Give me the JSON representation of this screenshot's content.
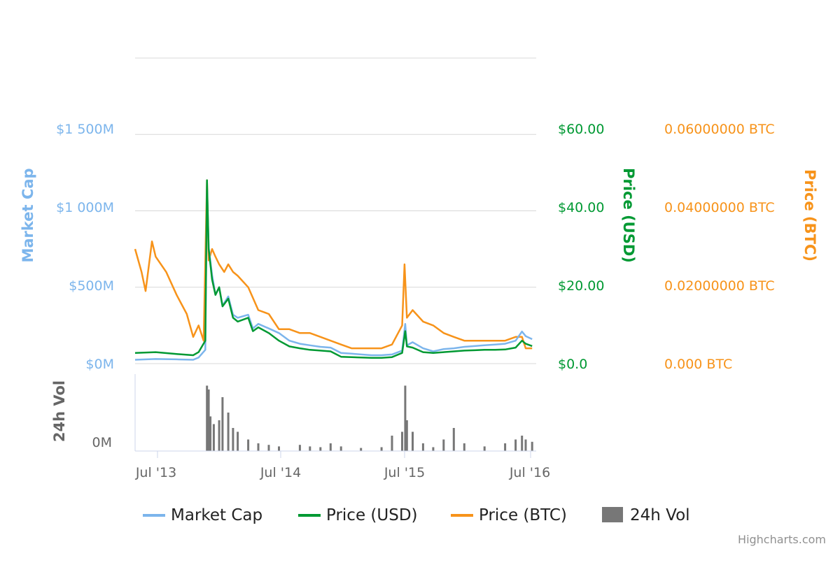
{
  "colors": {
    "market_cap": "#7cb5ec",
    "price_usd": "#009933",
    "price_btc": "#f7931a",
    "volume": "#777777",
    "grid": "#d8d8d8",
    "axis_text": "#666666"
  },
  "axes": {
    "market_cap": {
      "title": "Market Cap",
      "ticks": [
        "$0M",
        "$500M",
        "$1 000M",
        "$1 500M"
      ]
    },
    "price_usd": {
      "title": "Price (USD)",
      "ticks": [
        "$0.0",
        "$20.00",
        "$40.00",
        "$60.00"
      ]
    },
    "price_btc": {
      "title": "Price (BTC)",
      "ticks": [
        "0.000 BTC",
        "0.02000000 BTC",
        "0.04000000 BTC",
        "0.06000000 BTC"
      ]
    },
    "volume": {
      "title": "24h Vol",
      "ticks": [
        "0M"
      ]
    },
    "x_ticks": [
      "Jul '13",
      "Jul '14",
      "Jul '15",
      "Jul '16"
    ]
  },
  "legend": [
    "Market Cap",
    "Price (USD)",
    "Price (BTC)",
    "24h Vol"
  ],
  "credit": "Highcharts.com",
  "chart_data": {
    "type": "line",
    "x_range": [
      "2013-05",
      "2016-08"
    ],
    "y_ranges": {
      "market_cap": [
        0,
        2000
      ],
      "price_usd": [
        0,
        80
      ],
      "price_btc": [
        0,
        0.08
      ]
    },
    "grid": true,
    "legend_position": "bottom",
    "series": [
      {
        "name": "Market Cap",
        "axis": "market_cap",
        "unit": "$M",
        "points": [
          [
            "2013-05-01",
            25
          ],
          [
            "2013-07-01",
            30
          ],
          [
            "2013-09-01",
            28
          ],
          [
            "2013-10-20",
            25
          ],
          [
            "2013-11-05",
            40
          ],
          [
            "2013-11-25",
            90
          ],
          [
            "2013-11-30",
            1160
          ],
          [
            "2013-12-05",
            760
          ],
          [
            "2013-12-15",
            580
          ],
          [
            "2013-12-25",
            450
          ],
          [
            "2014-01-05",
            500
          ],
          [
            "2014-01-15",
            380
          ],
          [
            "2014-02-01",
            440
          ],
          [
            "2014-02-15",
            320
          ],
          [
            "2014-03-01",
            300
          ],
          [
            "2014-04-01",
            320
          ],
          [
            "2014-04-15",
            230
          ],
          [
            "2014-05-01",
            260
          ],
          [
            "2014-06-01",
            230
          ],
          [
            "2014-07-01",
            200
          ],
          [
            "2014-08-01",
            150
          ],
          [
            "2014-09-01",
            130
          ],
          [
            "2014-10-01",
            120
          ],
          [
            "2014-11-01",
            110
          ],
          [
            "2014-12-01",
            105
          ],
          [
            "2015-01-01",
            70
          ],
          [
            "2015-02-01",
            65
          ],
          [
            "2015-03-01",
            60
          ],
          [
            "2015-04-01",
            55
          ],
          [
            "2015-05-01",
            55
          ],
          [
            "2015-06-01",
            60
          ],
          [
            "2015-07-01",
            85
          ],
          [
            "2015-07-10",
            260
          ],
          [
            "2015-07-15",
            120
          ],
          [
            "2015-08-01",
            140
          ],
          [
            "2015-09-01",
            100
          ],
          [
            "2015-10-01",
            80
          ],
          [
            "2015-11-01",
            95
          ],
          [
            "2015-12-01",
            100
          ],
          [
            "2016-01-01",
            110
          ],
          [
            "2016-02-01",
            115
          ],
          [
            "2016-03-01",
            120
          ],
          [
            "2016-04-01",
            125
          ],
          [
            "2016-05-01",
            130
          ],
          [
            "2016-06-01",
            150
          ],
          [
            "2016-06-20",
            210
          ],
          [
            "2016-07-01",
            180
          ],
          [
            "2016-07-20",
            160
          ]
        ]
      },
      {
        "name": "Price (USD)",
        "axis": "price_usd",
        "unit": "$",
        "points": [
          [
            "2013-05-01",
            2.8
          ],
          [
            "2013-07-01",
            3.0
          ],
          [
            "2013-09-01",
            2.5
          ],
          [
            "2013-10-20",
            2.2
          ],
          [
            "2013-11-05",
            3.0
          ],
          [
            "2013-11-25",
            6.0
          ],
          [
            "2013-11-30",
            48.0
          ],
          [
            "2013-12-05",
            30.0
          ],
          [
            "2013-12-15",
            22.0
          ],
          [
            "2013-12-25",
            18.0
          ],
          [
            "2014-01-05",
            20.0
          ],
          [
            "2014-01-15",
            15.0
          ],
          [
            "2014-02-01",
            17.0
          ],
          [
            "2014-02-15",
            12.0
          ],
          [
            "2014-03-01",
            11.0
          ],
          [
            "2014-04-01",
            12.0
          ],
          [
            "2014-04-15",
            8.5
          ],
          [
            "2014-05-01",
            9.5
          ],
          [
            "2014-06-01",
            8.0
          ],
          [
            "2014-07-01",
            6.0
          ],
          [
            "2014-08-01",
            4.5
          ],
          [
            "2014-09-01",
            4.0
          ],
          [
            "2014-10-01",
            3.6
          ],
          [
            "2014-11-01",
            3.4
          ],
          [
            "2014-12-01",
            3.2
          ],
          [
            "2015-01-01",
            1.8
          ],
          [
            "2015-02-01",
            1.7
          ],
          [
            "2015-03-01",
            1.6
          ],
          [
            "2015-04-01",
            1.5
          ],
          [
            "2015-05-01",
            1.5
          ],
          [
            "2015-06-01",
            1.7
          ],
          [
            "2015-07-01",
            2.8
          ],
          [
            "2015-07-10",
            8.5
          ],
          [
            "2015-07-15",
            4.5
          ],
          [
            "2015-08-01",
            4.2
          ],
          [
            "2015-09-01",
            3.0
          ],
          [
            "2015-10-01",
            2.8
          ],
          [
            "2015-11-01",
            3.0
          ],
          [
            "2015-12-01",
            3.2
          ],
          [
            "2016-01-01",
            3.4
          ],
          [
            "2016-02-01",
            3.5
          ],
          [
            "2016-03-01",
            3.6
          ],
          [
            "2016-04-01",
            3.6
          ],
          [
            "2016-05-01",
            3.7
          ],
          [
            "2016-06-01",
            4.2
          ],
          [
            "2016-06-20",
            6.0
          ],
          [
            "2016-07-01",
            5.2
          ],
          [
            "2016-07-20",
            4.6
          ]
        ]
      },
      {
        "name": "Price (BTC)",
        "axis": "price_btc",
        "unit": "BTC",
        "points": [
          [
            "2013-05-01",
            0.03
          ],
          [
            "2013-05-20",
            0.024
          ],
          [
            "2013-06-01",
            0.019
          ],
          [
            "2013-06-20",
            0.032
          ],
          [
            "2013-07-01",
            0.028
          ],
          [
            "2013-08-01",
            0.024
          ],
          [
            "2013-09-01",
            0.018
          ],
          [
            "2013-10-01",
            0.013
          ],
          [
            "2013-10-20",
            0.007
          ],
          [
            "2013-11-05",
            0.01
          ],
          [
            "2013-11-20",
            0.006
          ],
          [
            "2013-11-30",
            0.048
          ],
          [
            "2013-12-05",
            0.027
          ],
          [
            "2013-12-15",
            0.03
          ],
          [
            "2013-12-25",
            0.028
          ],
          [
            "2014-01-05",
            0.026
          ],
          [
            "2014-01-20",
            0.024
          ],
          [
            "2014-02-01",
            0.026
          ],
          [
            "2014-02-15",
            0.024
          ],
          [
            "2014-03-01",
            0.023
          ],
          [
            "2014-04-01",
            0.02
          ],
          [
            "2014-05-01",
            0.014
          ],
          [
            "2014-06-01",
            0.013
          ],
          [
            "2014-07-01",
            0.009
          ],
          [
            "2014-08-01",
            0.009
          ],
          [
            "2014-09-01",
            0.008
          ],
          [
            "2014-10-01",
            0.008
          ],
          [
            "2014-11-01",
            0.007
          ],
          [
            "2014-12-01",
            0.006
          ],
          [
            "2015-01-01",
            0.005
          ],
          [
            "2015-02-01",
            0.004
          ],
          [
            "2015-03-01",
            0.004
          ],
          [
            "2015-04-01",
            0.004
          ],
          [
            "2015-05-01",
            0.004
          ],
          [
            "2015-06-01",
            0.005
          ],
          [
            "2015-07-01",
            0.01
          ],
          [
            "2015-07-08",
            0.026
          ],
          [
            "2015-07-15",
            0.012
          ],
          [
            "2015-08-01",
            0.014
          ],
          [
            "2015-09-01",
            0.011
          ],
          [
            "2015-10-01",
            0.01
          ],
          [
            "2015-11-01",
            0.008
          ],
          [
            "2015-12-01",
            0.007
          ],
          [
            "2016-01-01",
            0.006
          ],
          [
            "2016-02-01",
            0.006
          ],
          [
            "2016-03-01",
            0.006
          ],
          [
            "2016-04-01",
            0.006
          ],
          [
            "2016-05-01",
            0.006
          ],
          [
            "2016-06-01",
            0.007
          ],
          [
            "2016-06-20",
            0.007
          ],
          [
            "2016-07-01",
            0.004
          ],
          [
            "2016-07-20",
            0.004
          ]
        ]
      },
      {
        "name": "24h Vol",
        "axis": "volume",
        "type": "bar",
        "points": [
          [
            "2013-11-30",
            85
          ],
          [
            "2013-12-05",
            80
          ],
          [
            "2013-12-10",
            45
          ],
          [
            "2013-12-20",
            35
          ],
          [
            "2014-01-05",
            40
          ],
          [
            "2014-01-15",
            70
          ],
          [
            "2014-02-01",
            50
          ],
          [
            "2014-02-15",
            30
          ],
          [
            "2014-03-01",
            25
          ],
          [
            "2014-04-01",
            15
          ],
          [
            "2014-05-01",
            10
          ],
          [
            "2014-06-01",
            8
          ],
          [
            "2014-07-01",
            6
          ],
          [
            "2014-09-01",
            8
          ],
          [
            "2014-10-01",
            6
          ],
          [
            "2014-11-01",
            5
          ],
          [
            "2014-12-01",
            10
          ],
          [
            "2015-01-01",
            6
          ],
          [
            "2015-03-01",
            4
          ],
          [
            "2015-05-01",
            5
          ],
          [
            "2015-06-01",
            20
          ],
          [
            "2015-07-01",
            25
          ],
          [
            "2015-07-10",
            85
          ],
          [
            "2015-07-15",
            40
          ],
          [
            "2015-08-01",
            25
          ],
          [
            "2015-09-01",
            10
          ],
          [
            "2015-10-01",
            5
          ],
          [
            "2015-11-01",
            15
          ],
          [
            "2015-12-01",
            30
          ],
          [
            "2016-01-01",
            10
          ],
          [
            "2016-03-01",
            6
          ],
          [
            "2016-05-01",
            10
          ],
          [
            "2016-06-01",
            15
          ],
          [
            "2016-06-20",
            20
          ],
          [
            "2016-07-01",
            15
          ],
          [
            "2016-07-20",
            12
          ]
        ]
      }
    ]
  }
}
